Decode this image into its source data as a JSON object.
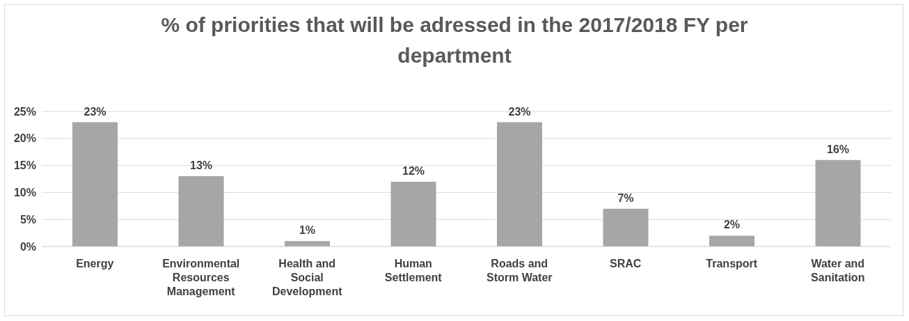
{
  "chart_data": {
    "type": "bar",
    "title": "% of priorities that will be adressed in the 2017/2018 FY per department",
    "categories": [
      "Energy",
      "Environmental Resources Management",
      "Health and Social Development",
      "Human Settlement",
      "Roads and Storm Water",
      "SRAC",
      "Transport",
      "Water and Sanitation"
    ],
    "values": [
      23,
      13,
      1,
      12,
      23,
      7,
      2,
      16
    ],
    "value_labels": [
      "23%",
      "13%",
      "1%",
      "12%",
      "23%",
      "7%",
      "2%",
      "16%"
    ],
    "color": "#a6a6a6",
    "ylim": [
      0,
      25
    ],
    "yticks": [
      {
        "value": 0,
        "label": "0%"
      },
      {
        "value": 5,
        "label": "5%"
      },
      {
        "value": 10,
        "label": "10%"
      },
      {
        "value": 15,
        "label": "15%"
      },
      {
        "value": 20,
        "label": "20%"
      },
      {
        "value": 25,
        "label": "25%"
      }
    ],
    "grid": "y",
    "legend": false
  }
}
